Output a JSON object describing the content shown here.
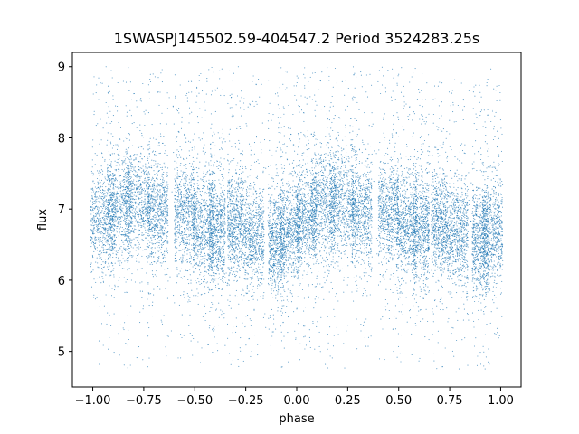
{
  "chart_data": {
    "type": "scatter",
    "title": "1SWASPJ145502.59-404547.2 Period 3524283.25s",
    "xlabel": "phase",
    "ylabel": "flux",
    "xlim": [
      -1.1,
      1.1
    ],
    "ylim": [
      4.5,
      9.2
    ],
    "x_ticks": [
      -1.0,
      -0.75,
      -0.5,
      -0.25,
      0.0,
      0.25,
      0.5,
      0.75,
      1.0
    ],
    "x_tick_labels": [
      "−1.00",
      "−0.75",
      "−0.50",
      "−0.25",
      "0.00",
      "0.25",
      "0.50",
      "0.75",
      "1.00"
    ],
    "y_ticks": [
      5,
      6,
      7,
      8,
      9
    ],
    "y_tick_labels": [
      "5",
      "6",
      "7",
      "8",
      "9"
    ],
    "grid": false,
    "legend": "none",
    "marker_color": "#1f77b4",
    "series": [
      {
        "observation_clusters": [
          {
            "x_center": -0.95,
            "x_width": 0.06,
            "y_center": 6.85,
            "y_spread": 0.38
          },
          {
            "x_center": -0.87,
            "x_width": 0.06,
            "y_center": 7.05,
            "y_spread": 0.38
          },
          {
            "x_center": -0.78,
            "x_width": 0.06,
            "y_center": 7.1,
            "y_spread": 0.38
          },
          {
            "x_center": -0.68,
            "x_width": 0.05,
            "y_center": 6.95,
            "y_spread": 0.4
          },
          {
            "x_center": -0.55,
            "x_width": 0.05,
            "y_center": 6.95,
            "y_spread": 0.38
          },
          {
            "x_center": -0.46,
            "x_width": 0.05,
            "y_center": 6.75,
            "y_spread": 0.38
          },
          {
            "x_center": -0.39,
            "x_width": 0.04,
            "y_center": 6.7,
            "y_spread": 0.42
          },
          {
            "x_center": -0.3,
            "x_width": 0.04,
            "y_center": 6.8,
            "y_spread": 0.38
          },
          {
            "x_center": -0.21,
            "x_width": 0.05,
            "y_center": 6.65,
            "y_spread": 0.36
          },
          {
            "x_center": -0.1,
            "x_width": 0.04,
            "y_center": 6.55,
            "y_spread": 0.38
          },
          {
            "x_center": -0.03,
            "x_width": 0.05,
            "y_center": 6.7,
            "y_spread": 0.4
          },
          {
            "x_center": 0.05,
            "x_width": 0.05,
            "y_center": 6.85,
            "y_spread": 0.38
          },
          {
            "x_center": 0.13,
            "x_width": 0.06,
            "y_center": 7.05,
            "y_spread": 0.38
          },
          {
            "x_center": 0.22,
            "x_width": 0.06,
            "y_center": 7.1,
            "y_spread": 0.38
          },
          {
            "x_center": 0.32,
            "x_width": 0.05,
            "y_center": 6.95,
            "y_spread": 0.4
          },
          {
            "x_center": 0.45,
            "x_width": 0.05,
            "y_center": 6.95,
            "y_spread": 0.38
          },
          {
            "x_center": 0.54,
            "x_width": 0.05,
            "y_center": 6.75,
            "y_spread": 0.38
          },
          {
            "x_center": 0.61,
            "x_width": 0.04,
            "y_center": 6.7,
            "y_spread": 0.42
          },
          {
            "x_center": 0.7,
            "x_width": 0.04,
            "y_center": 6.8,
            "y_spread": 0.38
          },
          {
            "x_center": 0.79,
            "x_width": 0.05,
            "y_center": 6.65,
            "y_spread": 0.36
          },
          {
            "x_center": 0.9,
            "x_width": 0.04,
            "y_center": 6.55,
            "y_spread": 0.38
          },
          {
            "x_center": 0.96,
            "x_width": 0.05,
            "y_center": 6.7,
            "y_spread": 0.4
          }
        ],
        "outlier_range": [
          4.75,
          9.0
        ],
        "approx_point_count": 16000
      }
    ]
  }
}
